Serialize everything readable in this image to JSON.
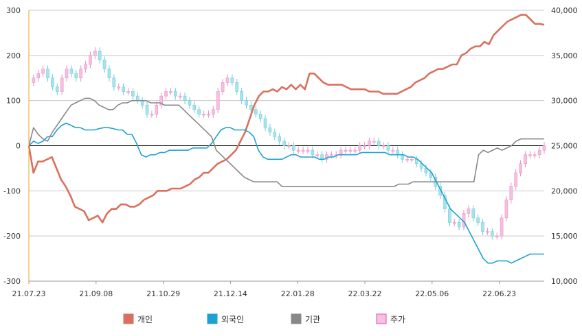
{
  "chart_data": {
    "type": "line",
    "title": "",
    "xlabel": "",
    "ylabel": "",
    "x_ticks": [
      "21.07.23",
      "21.09.08",
      "21.10.29",
      "21.12.14",
      "22.01.28",
      "22.03.22",
      "22.05.06",
      "22.06.23"
    ],
    "y_left": {
      "ticks": [
        "300",
        "200",
        "100",
        "0",
        "-100",
        "-200",
        "-300"
      ],
      "range": [
        -300,
        300
      ]
    },
    "y_right": {
      "ticks": [
        "40,000",
        "35,000",
        "30,000",
        "25,000",
        "20,000",
        "15,000",
        "10,000"
      ],
      "range": [
        10000,
        40000
      ]
    },
    "grid": true,
    "legend_position": "bottom",
    "series": [
      {
        "name": "개인",
        "axis": "left",
        "type": "line",
        "color": "#d9705f",
        "values": [
          0,
          -60,
          -35,
          -35,
          -30,
          -25,
          -50,
          -75,
          -90,
          -110,
          -135,
          -140,
          -145,
          -165,
          -160,
          -155,
          -170,
          -150,
          -140,
          -140,
          -130,
          -130,
          -135,
          -135,
          -130,
          -120,
          -115,
          -110,
          -100,
          -100,
          -100,
          -95,
          -95,
          -95,
          -90,
          -85,
          -75,
          -70,
          -60,
          -60,
          -50,
          -40,
          -35,
          -30,
          -20,
          -10,
          10,
          30,
          60,
          90,
          110,
          120,
          120,
          125,
          120,
          130,
          125,
          135,
          125,
          135,
          125,
          160,
          160,
          150,
          140,
          135,
          135,
          135,
          135,
          130,
          125,
          125,
          125,
          125,
          120,
          120,
          120,
          115,
          115,
          115,
          115,
          120,
          125,
          130,
          140,
          145,
          150,
          160,
          165,
          170,
          170,
          175,
          180,
          180,
          200,
          205,
          215,
          220,
          220,
          230,
          225,
          245,
          255,
          265,
          275,
          280,
          285,
          290,
          290,
          280,
          270,
          270,
          268
        ]
      },
      {
        "name": "외국인",
        "axis": "left",
        "type": "line",
        "color": "#1da1d2",
        "values": [
          0,
          10,
          5,
          10,
          20,
          20,
          35,
          45,
          50,
          45,
          40,
          40,
          35,
          35,
          35,
          38,
          40,
          40,
          38,
          35,
          35,
          25,
          25,
          5,
          -20,
          -25,
          -20,
          -20,
          -15,
          -15,
          -10,
          -10,
          -10,
          -10,
          -10,
          -5,
          -5,
          -5,
          -5,
          5,
          20,
          35,
          40,
          40,
          35,
          35,
          35,
          30,
          20,
          -10,
          -25,
          -30,
          -30,
          -30,
          -30,
          -25,
          -20,
          -20,
          -25,
          -25,
          -25,
          -25,
          -30,
          -30,
          -25,
          -25,
          -20,
          -20,
          -20,
          -20,
          -20,
          -15,
          -15,
          -15,
          -15,
          -15,
          -15,
          -20,
          -20,
          -20,
          -20,
          -25,
          -25,
          -30,
          -40,
          -50,
          -60,
          -80,
          -100,
          -120,
          -140,
          -150,
          -160,
          -170,
          -190,
          -210,
          -230,
          -250,
          -260,
          -260,
          -255,
          -255,
          -255,
          -260,
          -255,
          -250,
          -245,
          -240,
          -240,
          -240,
          -240
        ]
      },
      {
        "name": "기관",
        "axis": "left",
        "type": "line",
        "color": "#888888",
        "values": [
          0,
          40,
          25,
          15,
          10,
          30,
          45,
          60,
          75,
          90,
          95,
          100,
          105,
          105,
          100,
          90,
          85,
          80,
          80,
          90,
          95,
          95,
          100,
          100,
          100,
          100,
          95,
          95,
          95,
          90,
          90,
          90,
          90,
          80,
          70,
          60,
          50,
          40,
          30,
          20,
          -10,
          -20,
          -30,
          -40,
          -50,
          -60,
          -70,
          -75,
          -80,
          -80,
          -80,
          -80,
          -80,
          -80,
          -90,
          -90,
          -90,
          -90,
          -90,
          -90,
          -90,
          -90,
          -90,
          -90,
          -90,
          -90,
          -90,
          -90,
          -90,
          -90,
          -90,
          -90,
          -90,
          -90,
          -90,
          -90,
          -90,
          -90,
          -90,
          -85,
          -85,
          -85,
          -80,
          -80,
          -80,
          -80,
          -80,
          -80,
          -80,
          -80,
          -80,
          -80,
          -80,
          -80,
          -80,
          -80,
          -20,
          -10,
          -15,
          -10,
          -5,
          -10,
          -5,
          0,
          10,
          15,
          15,
          15,
          15,
          15,
          15
        ]
      },
      {
        "name": "주가",
        "axis": "right",
        "type": "candlestick",
        "color": "#f7c0e0",
        "values": [
          32000,
          32500,
          33000,
          33500,
          32500,
          31500,
          31000,
          32500,
          33500,
          33000,
          32500,
          33500,
          34000,
          35000,
          35500,
          34500,
          33500,
          32500,
          31500,
          31500,
          31000,
          31000,
          30500,
          30000,
          29500,
          28500,
          28500,
          29500,
          30500,
          31000,
          31000,
          30500,
          30500,
          30000,
          29500,
          29000,
          28500,
          28500,
          28500,
          29000,
          31000,
          32000,
          32500,
          32000,
          31000,
          30000,
          29500,
          29000,
          28500,
          28000,
          27000,
          26500,
          26000,
          25500,
          25000,
          25000,
          24500,
          24500,
          24500,
          24500,
          24000,
          24000,
          23500,
          24000,
          24000,
          24000,
          24500,
          24500,
          24500,
          24500,
          25000,
          25000,
          25500,
          25500,
          25000,
          25000,
          24500,
          24500,
          24000,
          23500,
          23500,
          23500,
          23000,
          22500,
          22000,
          21500,
          20500,
          19500,
          18000,
          16500,
          16500,
          16000,
          17500,
          18000,
          17000,
          16500,
          15500,
          15500,
          15000,
          15000,
          17000,
          19000,
          20500,
          22000,
          23000,
          24000,
          24000,
          24000,
          24500,
          25000
        ]
      }
    ]
  }
}
